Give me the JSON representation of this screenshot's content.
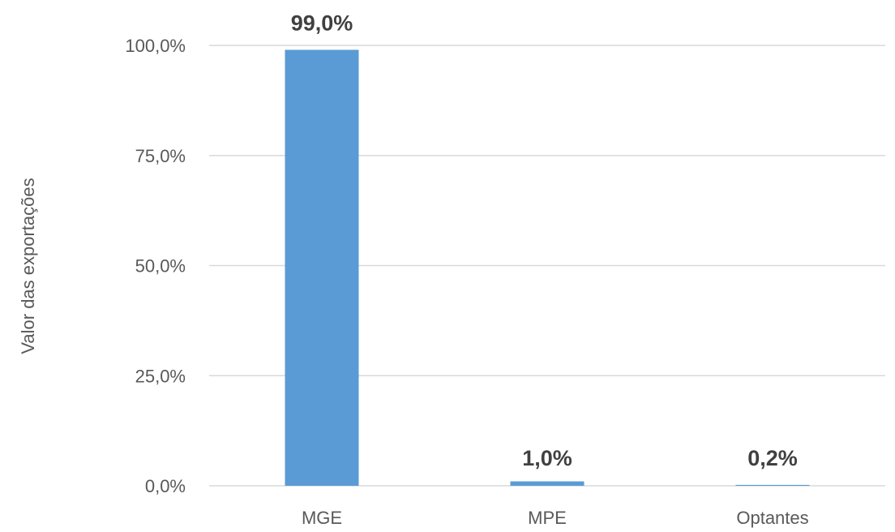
{
  "chart_data": {
    "type": "bar",
    "categories": [
      "MGE",
      "MPE",
      "Optantes"
    ],
    "values": [
      99.0,
      1.0,
      0.2
    ],
    "data_labels": [
      "99,0%",
      "1,0%",
      "0,2%"
    ],
    "ylabel": "Valor das exportações",
    "xlabel": "",
    "ylim": [
      0,
      100
    ],
    "yticks": [
      0,
      25,
      50,
      75,
      100
    ],
    "ytick_labels": [
      "0,0%",
      "25,0%",
      "50,0%",
      "75,0%",
      "100,0%"
    ],
    "grid": true,
    "bar_color": "#5b9bd5"
  }
}
